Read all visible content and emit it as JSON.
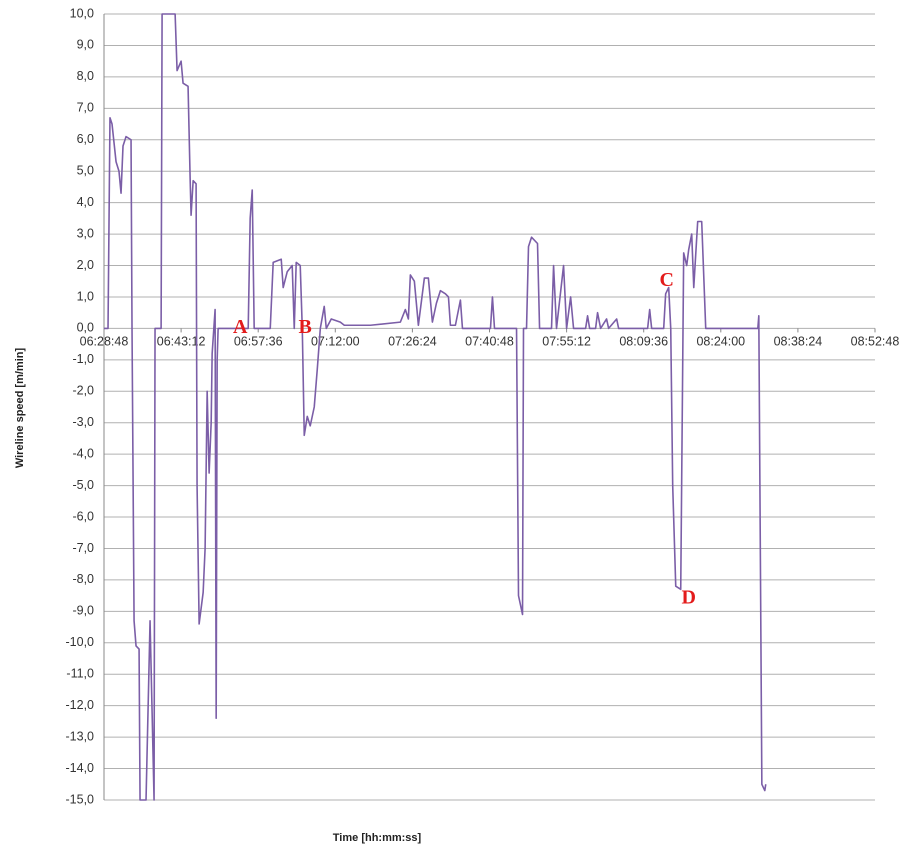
{
  "chart_data": {
    "type": "line",
    "y_label": "Wireline speed [m/min]",
    "x_label": "Time [hh:mm:ss]",
    "color": "#7b5ea7",
    "grid": true,
    "xlim": [
      "06:28:48",
      "08:52:48"
    ],
    "xticks": [
      "06:28:48",
      "06:43:12",
      "06:57:36",
      "07:12:00",
      "07:26:24",
      "07:40:48",
      "07:55:12",
      "08:09:36",
      "08:24:00",
      "08:38:24",
      "08:52:48"
    ],
    "ylim": [
      -15,
      10
    ],
    "yticks": [
      {
        "value": 10,
        "label": "10,0"
      },
      {
        "value": 9,
        "label": "9,0"
      },
      {
        "value": 8,
        "label": "8,0"
      },
      {
        "value": 7,
        "label": "7,0"
      },
      {
        "value": 6,
        "label": "6,0"
      },
      {
        "value": 5,
        "label": "5,0"
      },
      {
        "value": 4,
        "label": "4,0"
      },
      {
        "value": 3,
        "label": "3,0"
      },
      {
        "value": 2,
        "label": "2,0"
      },
      {
        "value": 1,
        "label": "1,0"
      },
      {
        "value": 0,
        "label": "0,0"
      },
      {
        "value": -1,
        "label": "-1,0"
      },
      {
        "value": -2,
        "label": "-2,0"
      },
      {
        "value": -3,
        "label": "-3,0"
      },
      {
        "value": -4,
        "label": "-4,0"
      },
      {
        "value": -5,
        "label": "-5,0"
      },
      {
        "value": -6,
        "label": "-6,0"
      },
      {
        "value": -7,
        "label": "-7,0"
      },
      {
        "value": -8,
        "label": "-8,0"
      },
      {
        "value": -9,
        "label": "-9,0"
      },
      {
        "value": -10,
        "label": "-10,0"
      },
      {
        "value": -11,
        "label": "-11,0"
      },
      {
        "value": -12,
        "label": "-12,0"
      },
      {
        "value": -13,
        "label": "-13,0"
      },
      {
        "value": -14,
        "label": "-14,0"
      },
      {
        "value": -15,
        "label": "-15,0"
      }
    ],
    "x": [
      "06:28:48",
      "06:29:33",
      "06:29:55",
      "06:30:18",
      "06:31:03",
      "06:31:36",
      "06:31:59",
      "06:32:21",
      "06:32:55",
      "06:33:51",
      "06:34:02",
      "06:34:25",
      "06:34:47",
      "06:35:21",
      "06:35:32",
      "06:36:39",
      "06:37:24",
      "06:38:09",
      "06:38:20",
      "06:39:28",
      "06:39:39",
      "06:42:05",
      "06:42:27",
      "06:43:12",
      "06:43:34",
      "06:44:30",
      "06:44:53",
      "06:45:04",
      "06:45:27",
      "06:46:00",
      "06:46:11",
      "06:46:34",
      "06:47:19",
      "06:47:41",
      "06:48:04",
      "06:48:26",
      "06:48:49",
      "06:49:00",
      "06:49:33",
      "06:49:45",
      "06:49:56",
      "06:50:07",
      "06:55:44",
      "06:56:06",
      "06:56:29",
      "06:56:51",
      "06:59:51",
      "07:00:24",
      "07:01:54",
      "07:02:16",
      "07:03:01",
      "07:03:57",
      "07:04:20",
      "07:04:42",
      "07:05:27",
      "07:05:50",
      "07:06:12",
      "07:06:46",
      "07:07:19",
      "07:08:04",
      "07:08:38",
      "07:09:12",
      "07:09:56",
      "07:10:19",
      "07:11:15",
      "07:12:56",
      "07:13:41",
      "07:18:33",
      "07:24:09",
      "07:25:05",
      "07:25:39",
      "07:26:01",
      "07:26:46",
      "07:27:31",
      "07:28:38",
      "07:29:23",
      "07:30:08",
      "07:30:53",
      "07:31:38",
      "07:32:34",
      "07:33:08",
      "07:33:30",
      "07:34:26",
      "07:35:22",
      "07:35:45",
      "07:40:59",
      "07:41:21",
      "07:41:44",
      "07:45:51",
      "07:46:13",
      "07:46:58",
      "07:47:09",
      "07:47:43",
      "07:48:05",
      "07:48:39",
      "07:49:46",
      "07:50:09",
      "07:52:23",
      "07:52:46",
      "07:53:19",
      "07:54:38",
      "07:55:12",
      "07:55:57",
      "07:56:30",
      "07:58:45",
      "07:59:07",
      "07:59:30",
      "08:00:37",
      "08:00:59",
      "08:01:33",
      "08:02:40",
      "08:03:03",
      "08:04:33",
      "08:04:55",
      "08:10:20",
      "08:10:43",
      "08:11:05",
      "08:13:20",
      "08:13:42",
      "08:14:16",
      "08:14:39",
      "08:15:01",
      "08:15:35",
      "08:16:31",
      "08:17:04",
      "08:17:38",
      "08:18:00",
      "08:18:34",
      "08:18:57",
      "08:19:41",
      "08:20:26",
      "08:21:11",
      "08:30:55",
      "08:31:06",
      "08:31:40",
      "08:32:13",
      "08:32:24"
    ],
    "values": [
      0,
      0,
      6.7,
      6.5,
      5.3,
      5.0,
      4.3,
      5.8,
      6.1,
      6.0,
      0,
      -9.3,
      -10.1,
      -10.2,
      -15,
      -15,
      -9.3,
      -15,
      0,
      0,
      10,
      10,
      8.2,
      8.5,
      7.8,
      7.7,
      4.8,
      3.6,
      4.7,
      4.6,
      -5,
      -9.4,
      -8.4,
      -7,
      -2,
      -4.6,
      -3,
      -0.8,
      0.6,
      -12.4,
      -1,
      0,
      0,
      3.5,
      4.4,
      0,
      0,
      2.1,
      2.2,
      1.3,
      1.8,
      2.0,
      0,
      2.1,
      2.0,
      0,
      -3.4,
      -2.8,
      -3.1,
      -2.5,
      -1.3,
      0,
      0.7,
      0,
      0.3,
      0.2,
      0.1,
      0.1,
      0.2,
      0.6,
      0.3,
      1.7,
      1.5,
      0.1,
      1.6,
      1.6,
      0.2,
      0.8,
      1.2,
      1.1,
      1.0,
      0.1,
      0.1,
      0.9,
      0,
      0,
      1.0,
      0,
      0,
      -8.5,
      -9.1,
      0,
      0,
      2.6,
      2.9,
      2.7,
      0,
      0,
      2.0,
      0,
      2.0,
      0,
      1.0,
      0,
      0,
      0.4,
      0,
      0,
      0.5,
      0,
      0.3,
      0,
      0.3,
      0,
      0,
      0.6,
      0,
      0,
      1.1,
      1.3,
      0,
      -5,
      -8.2,
      -8.3,
      2.4,
      2.0,
      2.5,
      3.0,
      1.3,
      3.4,
      3.4,
      0,
      0,
      0.4,
      -14.5,
      -14.7,
      -14.5
    ],
    "annotations": [
      {
        "text": "A",
        "x": "06:54:14",
        "y": 0
      },
      {
        "text": "B",
        "x": "07:06:23",
        "y": 0
      },
      {
        "text": "C",
        "x": "08:13:54",
        "y": 1.5
      },
      {
        "text": "D",
        "x": "08:18:00",
        "y": -8.6
      }
    ]
  }
}
